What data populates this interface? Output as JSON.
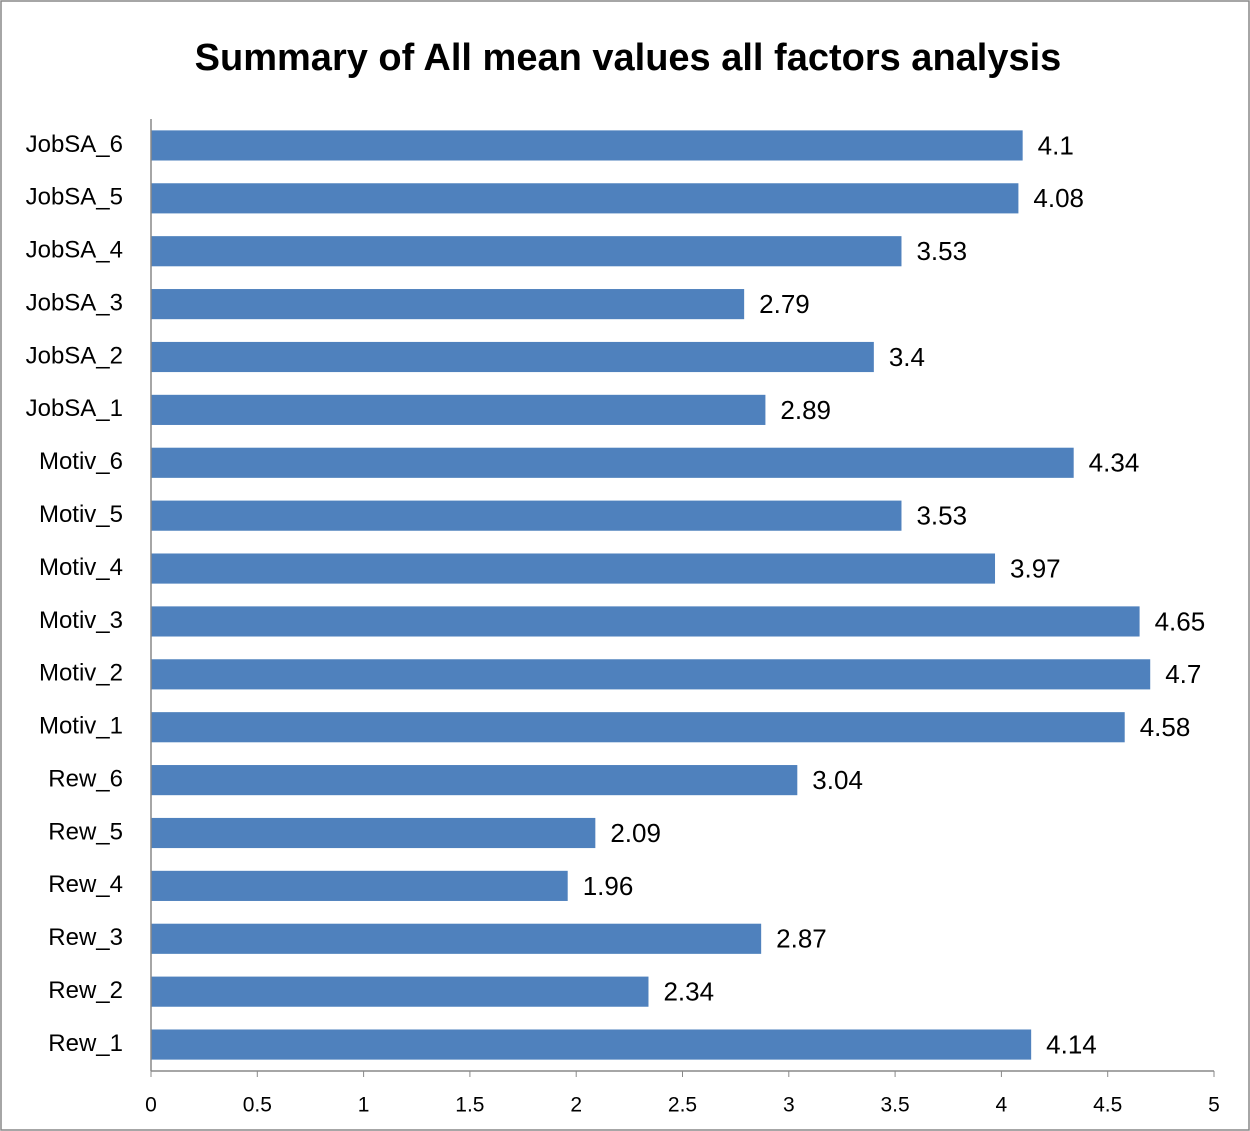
{
  "chart_data": {
    "type": "bar",
    "orientation": "horizontal",
    "title": "Summary of All mean values all factors analysis",
    "categories": [
      "Rew_1",
      "Rew_2",
      "Rew_3",
      "Rew_4",
      "Rew_5",
      "Rew_6",
      "Motiv_1",
      "Motiv_2",
      "Motiv_3",
      "Motiv_4",
      "Motiv_5",
      "Motiv_6",
      "JobSA_1",
      "JobSA_2",
      "JobSA_3",
      "JobSA_4",
      "JobSA_5",
      "JobSA_6"
    ],
    "values": [
      4.14,
      2.34,
      2.87,
      1.96,
      2.09,
      3.04,
      4.58,
      4.7,
      4.65,
      3.97,
      3.53,
      4.34,
      2.89,
      3.4,
      2.79,
      3.53,
      4.08,
      4.1
    ],
    "color": "#4f81bd",
    "xlim": [
      0,
      5
    ],
    "xticks": [
      0,
      0.5,
      1,
      1.5,
      2,
      2.5,
      3,
      3.5,
      4,
      4.5,
      5
    ],
    "grid": false
  }
}
